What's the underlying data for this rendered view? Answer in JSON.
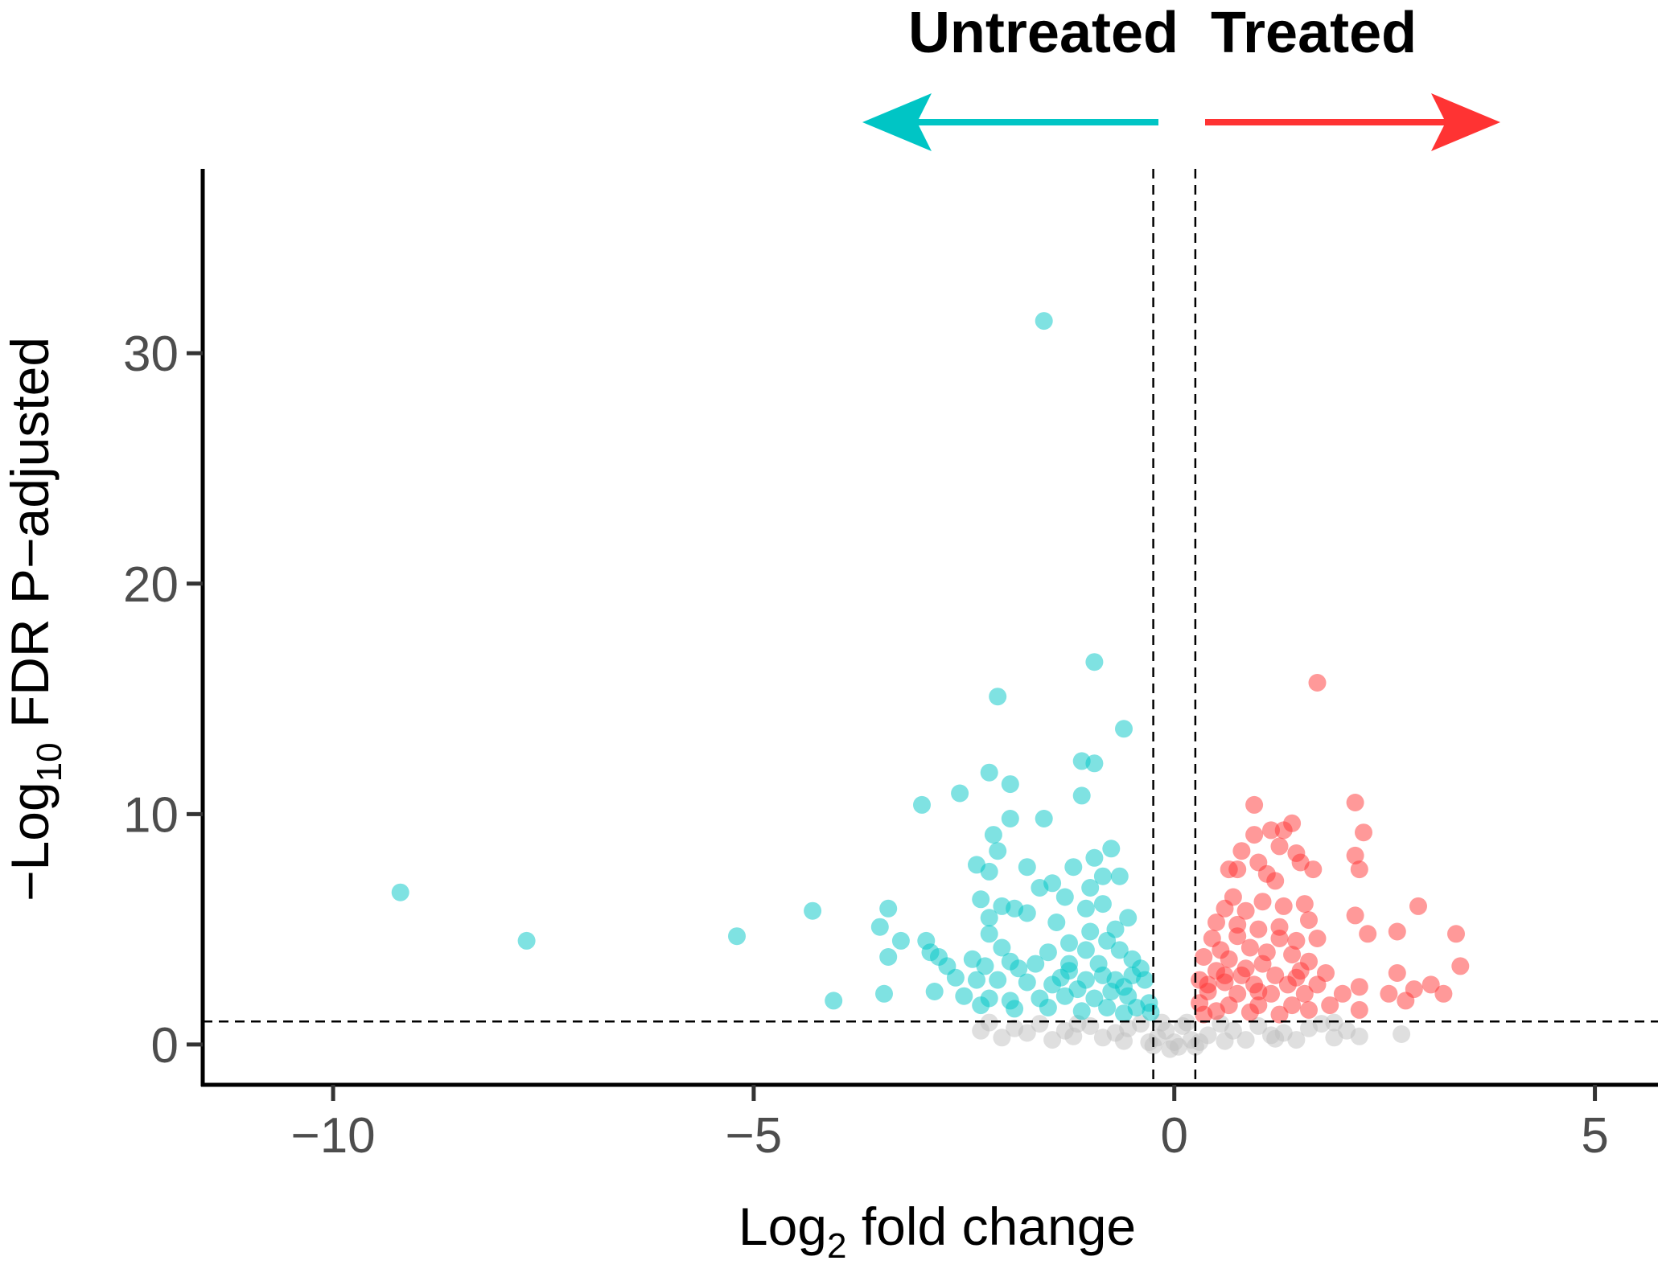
{
  "chart_data": {
    "type": "scatter",
    "title": "",
    "xlabel": {
      "prefix": "Log",
      "subscript": "2",
      "suffix": " fold change"
    },
    "ylabel": {
      "prefix": "−Log",
      "subscript": "10",
      "suffix": " FDR P−adjusted"
    },
    "xlim": [
      -11.55,
      5.75
    ],
    "ylim": [
      -1.75,
      38
    ],
    "x_ticks": [
      -10,
      -5,
      0,
      5
    ],
    "x_tick_labels": [
      "−10",
      "−5",
      "0",
      "5"
    ],
    "y_ticks": [
      0,
      10,
      20,
      30
    ],
    "y_tick_labels": [
      "0",
      "10",
      "20",
      "30"
    ],
    "grid": false,
    "legend": "none",
    "thresholds": {
      "log2fc": [
        -0.25,
        0.25
      ],
      "neg_log10_padj": 1
    },
    "group_labels": {
      "left": {
        "text": "Untreated",
        "color": "#00c5c5"
      },
      "right": {
        "text": "Treated",
        "color": "#ff3333"
      }
    },
    "colors": {
      "down": "#00c5c5",
      "up": "#ff3333",
      "ns": "#c0c0c0"
    },
    "series": [
      {
        "group": "down",
        "points": [
          [
            -1.55,
            31.4
          ],
          [
            -0.95,
            16.6
          ],
          [
            -2.1,
            15.1
          ],
          [
            -0.6,
            13.7
          ],
          [
            -1.1,
            12.3
          ],
          [
            -0.95,
            12.2
          ],
          [
            -2.2,
            11.8
          ],
          [
            -1.95,
            11.3
          ],
          [
            -2.55,
            10.9
          ],
          [
            -1.1,
            10.8
          ],
          [
            -3.0,
            10.4
          ],
          [
            -1.55,
            9.8
          ],
          [
            -1.95,
            9.8
          ],
          [
            -2.15,
            9.1
          ],
          [
            -2.1,
            8.4
          ],
          [
            -0.75,
            8.5
          ],
          [
            -0.95,
            8.1
          ],
          [
            -2.2,
            7.5
          ],
          [
            -2.35,
            7.8
          ],
          [
            -1.75,
            7.7
          ],
          [
            -1.2,
            7.7
          ],
          [
            -0.85,
            7.3
          ],
          [
            -0.65,
            7.3
          ],
          [
            -1.45,
            7.0
          ],
          [
            -1.6,
            6.8
          ],
          [
            -1.0,
            6.8
          ],
          [
            -9.2,
            6.6
          ],
          [
            -1.3,
            6.4
          ],
          [
            -0.85,
            6.1
          ],
          [
            -2.3,
            6.3
          ],
          [
            -2.05,
            6.0
          ],
          [
            -1.9,
            5.9
          ],
          [
            -1.75,
            5.7
          ],
          [
            -3.4,
            5.9
          ],
          [
            -4.3,
            5.8
          ],
          [
            -1.05,
            5.9
          ],
          [
            -0.55,
            5.5
          ],
          [
            -2.2,
            5.5
          ],
          [
            -1.4,
            5.3
          ],
          [
            -3.5,
            5.1
          ],
          [
            -0.7,
            5.0
          ],
          [
            -5.2,
            4.7
          ],
          [
            -1.0,
            4.9
          ],
          [
            -2.2,
            4.8
          ],
          [
            -2.95,
            4.5
          ],
          [
            -7.7,
            4.5
          ],
          [
            -3.25,
            4.5
          ],
          [
            -0.8,
            4.5
          ],
          [
            -1.25,
            4.4
          ],
          [
            -2.05,
            4.2
          ],
          [
            -2.9,
            4.0
          ],
          [
            -1.5,
            4.0
          ],
          [
            -1.05,
            4.1
          ],
          [
            -0.65,
            4.1
          ],
          [
            -2.8,
            3.8
          ],
          [
            -3.4,
            3.8
          ],
          [
            -2.4,
            3.7
          ],
          [
            -2.25,
            3.4
          ],
          [
            -1.95,
            3.6
          ],
          [
            -1.85,
            3.3
          ],
          [
            -2.7,
            3.4
          ],
          [
            -0.5,
            3.7
          ],
          [
            -0.4,
            3.3
          ],
          [
            -1.65,
            3.5
          ],
          [
            -1.25,
            3.5
          ],
          [
            -0.9,
            3.5
          ],
          [
            -2.6,
            2.9
          ],
          [
            -2.35,
            2.8
          ],
          [
            -2.1,
            2.8
          ],
          [
            -1.75,
            2.7
          ],
          [
            -1.35,
            2.9
          ],
          [
            -1.05,
            2.8
          ],
          [
            -0.7,
            2.8
          ],
          [
            -0.35,
            2.8
          ],
          [
            -2.85,
            2.3
          ],
          [
            -3.45,
            2.2
          ],
          [
            -4.05,
            1.9
          ],
          [
            -2.5,
            2.1
          ],
          [
            -2.2,
            2.0
          ],
          [
            -1.95,
            1.9
          ],
          [
            -1.6,
            2.0
          ],
          [
            -1.3,
            2.1
          ],
          [
            -0.95,
            2.0
          ],
          [
            -0.55,
            2.1
          ],
          [
            -0.3,
            1.8
          ],
          [
            -2.3,
            1.7
          ],
          [
            -1.5,
            1.6
          ],
          [
            -0.8,
            1.6
          ],
          [
            -0.45,
            1.6
          ],
          [
            -0.28,
            1.4
          ],
          [
            -1.9,
            1.55
          ],
          [
            -1.1,
            1.45
          ],
          [
            -0.6,
            1.35
          ],
          [
            -0.75,
            2.3
          ],
          [
            -1.15,
            2.4
          ],
          [
            -0.85,
            3.0
          ],
          [
            -1.45,
            2.6
          ],
          [
            -0.6,
            2.5
          ],
          [
            -1.25,
            3.2
          ],
          [
            -0.5,
            3.0
          ]
        ]
      },
      {
        "group": "up",
        "points": [
          [
            1.7,
            15.7
          ],
          [
            2.15,
            10.5
          ],
          [
            0.95,
            10.4
          ],
          [
            1.3,
            9.3
          ],
          [
            1.15,
            9.3
          ],
          [
            1.4,
            9.6
          ],
          [
            0.95,
            9.1
          ],
          [
            2.25,
            9.2
          ],
          [
            1.25,
            8.6
          ],
          [
            1.45,
            8.3
          ],
          [
            0.8,
            8.4
          ],
          [
            2.15,
            8.2
          ],
          [
            1.5,
            7.9
          ],
          [
            1.0,
            7.9
          ],
          [
            0.75,
            7.6
          ],
          [
            0.65,
            7.6
          ],
          [
            1.65,
            7.6
          ],
          [
            2.2,
            7.6
          ],
          [
            1.1,
            7.4
          ],
          [
            1.2,
            7.1
          ],
          [
            0.7,
            6.4
          ],
          [
            1.05,
            6.2
          ],
          [
            1.3,
            6.0
          ],
          [
            1.55,
            6.1
          ],
          [
            2.9,
            6.0
          ],
          [
            0.6,
            5.9
          ],
          [
            0.85,
            5.8
          ],
          [
            1.6,
            5.4
          ],
          [
            2.15,
            5.6
          ],
          [
            0.5,
            5.3
          ],
          [
            1.0,
            5.0
          ],
          [
            1.25,
            5.1
          ],
          [
            2.65,
            4.9
          ],
          [
            3.35,
            4.8
          ],
          [
            2.3,
            4.8
          ],
          [
            0.45,
            4.6
          ],
          [
            0.75,
            4.7
          ],
          [
            1.45,
            4.5
          ],
          [
            1.7,
            4.6
          ],
          [
            0.55,
            4.1
          ],
          [
            0.9,
            4.2
          ],
          [
            1.1,
            4.0
          ],
          [
            1.4,
            3.9
          ],
          [
            0.35,
            3.8
          ],
          [
            0.65,
            3.7
          ],
          [
            1.05,
            3.5
          ],
          [
            3.4,
            3.4
          ],
          [
            0.5,
            3.2
          ],
          [
            0.8,
            3.0
          ],
          [
            1.2,
            3.0
          ],
          [
            1.5,
            3.2
          ],
          [
            1.8,
            3.1
          ],
          [
            2.65,
            3.1
          ],
          [
            0.3,
            2.8
          ],
          [
            0.6,
            2.7
          ],
          [
            0.95,
            2.6
          ],
          [
            1.35,
            2.6
          ],
          [
            1.7,
            2.6
          ],
          [
            3.05,
            2.6
          ],
          [
            2.2,
            2.5
          ],
          [
            2.85,
            2.4
          ],
          [
            0.4,
            2.3
          ],
          [
            0.75,
            2.2
          ],
          [
            1.15,
            2.2
          ],
          [
            1.55,
            2.2
          ],
          [
            2.55,
            2.2
          ],
          [
            3.2,
            2.2
          ],
          [
            2.75,
            1.9
          ],
          [
            0.3,
            1.8
          ],
          [
            0.65,
            1.7
          ],
          [
            1.0,
            1.7
          ],
          [
            1.4,
            1.7
          ],
          [
            1.85,
            1.7
          ],
          [
            2.2,
            1.5
          ],
          [
            0.5,
            1.45
          ],
          [
            0.9,
            1.4
          ],
          [
            1.25,
            1.3
          ],
          [
            1.6,
            1.5
          ],
          [
            0.35,
            1.3
          ],
          [
            0.85,
            3.3
          ],
          [
            1.25,
            4.6
          ],
          [
            0.6,
            3.0
          ],
          [
            1.0,
            2.3
          ],
          [
            1.6,
            3.6
          ],
          [
            0.75,
            5.2
          ],
          [
            1.45,
            2.9
          ],
          [
            0.4,
            2.6
          ],
          [
            2.0,
            2.2
          ]
        ]
      },
      {
        "group": "ns",
        "points": [
          [
            -1.9,
            0.7
          ],
          [
            -1.6,
            0.9
          ],
          [
            -1.3,
            0.6
          ],
          [
            -1.0,
            0.8
          ],
          [
            -0.7,
            0.5
          ],
          [
            -0.4,
            0.9
          ],
          [
            -0.2,
            0.3
          ],
          [
            0.0,
            0.1
          ],
          [
            0.2,
            0.2
          ],
          [
            0.4,
            0.4
          ],
          [
            0.7,
            0.6
          ],
          [
            1.0,
            0.8
          ],
          [
            1.3,
            0.5
          ],
          [
            1.6,
            0.7
          ],
          [
            1.9,
            0.3
          ],
          [
            2.2,
            0.35
          ],
          [
            2.7,
            0.45
          ],
          [
            -2.2,
            0.95
          ],
          [
            -1.75,
            0.5
          ],
          [
            -1.15,
            0.9
          ],
          [
            -0.55,
            0.7
          ],
          [
            -0.1,
            0.6
          ],
          [
            0.1,
            0.8
          ],
          [
            0.55,
            0.9
          ],
          [
            1.15,
            0.4
          ],
          [
            1.75,
            0.9
          ],
          [
            -2.05,
            0.3
          ],
          [
            -1.45,
            0.2
          ],
          [
            -0.85,
            0.3
          ],
          [
            -0.3,
            0.1
          ],
          [
            0.3,
            0.1
          ],
          [
            0.85,
            0.2
          ],
          [
            1.45,
            0.2
          ],
          [
            2.05,
            0.6
          ],
          [
            -0.05,
            -0.2
          ],
          [
            0.05,
            -0.1
          ],
          [
            -0.15,
            0.95
          ],
          [
            0.15,
            0.95
          ],
          [
            1.9,
            0.95
          ],
          [
            -2.3,
            0.6
          ],
          [
            -0.6,
            0.15
          ],
          [
            0.6,
            0.15
          ],
          [
            -1.2,
            0.35
          ],
          [
            1.2,
            0.25
          ],
          [
            -0.25,
            -0.05
          ],
          [
            0.25,
            -0.1
          ]
        ]
      }
    ]
  }
}
